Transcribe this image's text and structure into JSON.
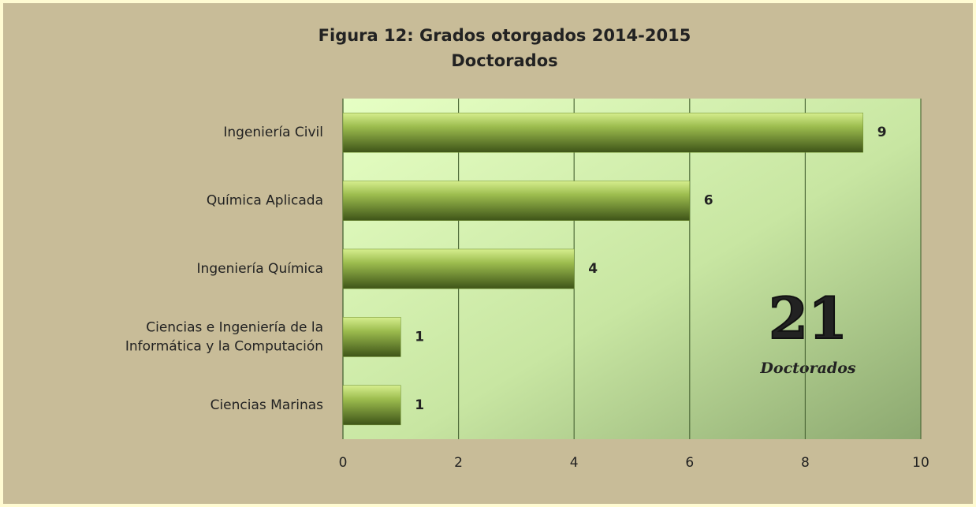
{
  "chart_data": {
    "type": "barh",
    "title": "Figura 12: Grados otorgados 2014-2015",
    "subtitle": "Doctorados",
    "categories": [
      "Ingeniería Civil",
      "Química Aplicada",
      "Ingeniería Química",
      "Ciencias e Ingeniería de la\nInformática y la Computación",
      "Ciencias Marinas"
    ],
    "values": [
      9,
      6,
      4,
      1,
      1
    ],
    "color": "#6b8a2a",
    "xlim": [
      0,
      10
    ],
    "xticks": [
      0,
      2,
      4,
      6,
      8,
      10
    ],
    "grid": true,
    "annotations": [
      "21",
      "Doctorados"
    ]
  }
}
